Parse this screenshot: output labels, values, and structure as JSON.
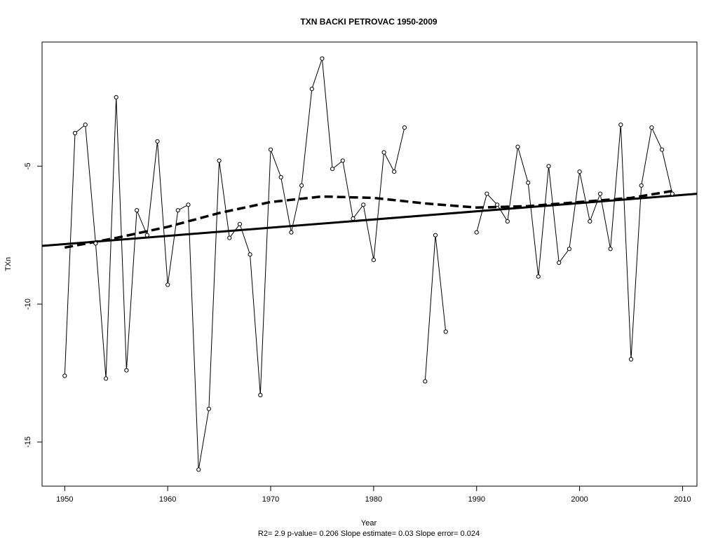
{
  "chart_data": {
    "type": "line",
    "title": "TXN   BACKI PETROVAC 1950-2009",
    "xlabel": "Year",
    "ylabel": "TXn",
    "footer": "R2= 2.9  p-value= 0.206  Slope estimate= 0.03  Slope error= 0.024",
    "xlim": [
      1947.8,
      2011.4
    ],
    "ylim": [
      -16.6,
      -0.5
    ],
    "xticks": [
      "1950",
      "1960",
      "1970",
      "1980",
      "1990",
      "2000",
      "2010"
    ],
    "yticks": [
      "-5",
      "-10",
      "-15"
    ],
    "grid": false,
    "x": [
      1950,
      1951,
      1952,
      1953,
      1954,
      1955,
      1956,
      1957,
      1958,
      1959,
      1960,
      1961,
      1962,
      1963,
      1964,
      1965,
      1966,
      1967,
      1968,
      1969,
      1970,
      1971,
      1972,
      1973,
      1974,
      1975,
      1976,
      1977,
      1978,
      1979,
      1980,
      1981,
      1982,
      1983,
      1984,
      1985,
      1986,
      1987,
      1988,
      1989,
      1990,
      1991,
      1992,
      1993,
      1994,
      1995,
      1996,
      1997,
      1998,
      1999,
      2000,
      2001,
      2002,
      2003,
      2004,
      2005,
      2006,
      2007,
      2008,
      2009
    ],
    "series": [
      {
        "values": [
          -12.6,
          -3.8,
          -3.5,
          -7.8,
          -12.7,
          -2.5,
          -12.4,
          -6.6,
          -7.5,
          -4.1,
          -9.3,
          -6.6,
          -6.4,
          -16.0,
          -13.8,
          -4.8,
          -7.6,
          -7.1,
          -8.2,
          -13.3,
          -4.4,
          -5.4,
          -7.4,
          -5.7,
          -2.2,
          -1.1,
          -5.1,
          -4.8,
          -6.9,
          -6.4,
          -8.4,
          -4.5,
          -5.2,
          -3.6,
          null,
          -12.8,
          -7.5,
          -11.0,
          null,
          null,
          -7.4,
          -6.0,
          -6.4,
          -7.0,
          -4.3,
          -5.6,
          -9.0,
          -5.0,
          -8.5,
          -8.0,
          -5.2,
          -7.0,
          -6.0,
          -8.0,
          -3.5,
          -12.0,
          -5.7,
          -3.6,
          -4.4,
          -6.0
        ],
        "style": "points-connected"
      },
      {
        "name": "linear trend",
        "x": [
          1947.8,
          2011.4
        ],
        "values": [
          -7.89,
          -6.0
        ],
        "style": "solid-thick"
      },
      {
        "name": "smooth",
        "x": [
          1950,
          1955,
          1960,
          1965,
          1970,
          1975,
          1980,
          1985,
          1990,
          1995,
          2000,
          2005,
          2009
        ],
        "values": [
          -7.95,
          -7.6,
          -7.2,
          -6.7,
          -6.3,
          -6.1,
          -6.15,
          -6.35,
          -6.5,
          -6.45,
          -6.3,
          -6.15,
          -5.9
        ],
        "style": "dashed-thick"
      }
    ]
  }
}
